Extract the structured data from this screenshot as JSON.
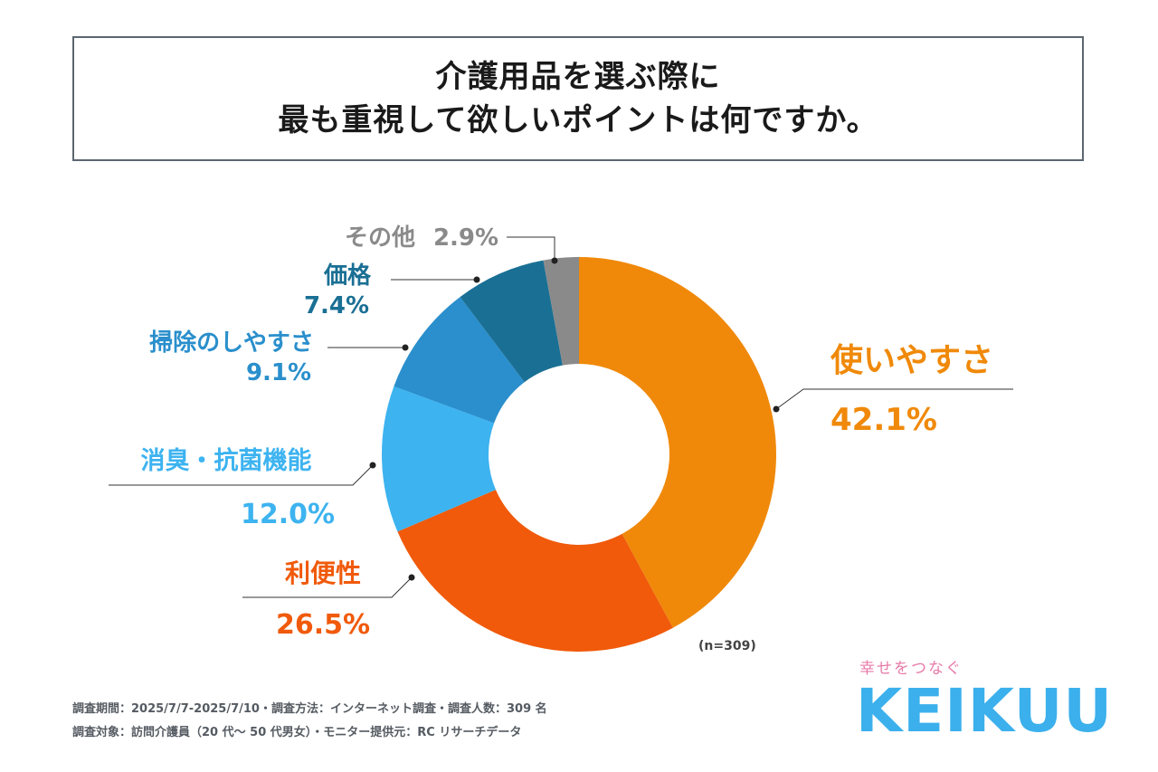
{
  "title": {
    "line1": "介護用品を選ぶ際に",
    "line2": "最も重視して欲しいポイントは何ですか。"
  },
  "chart_data": {
    "type": "pie",
    "style": "donut",
    "sample_size_label": "(n=309)",
    "slices": [
      {
        "label": "使いやすさ",
        "value": 42.1,
        "value_label": "42.1%",
        "color": "#f0890a"
      },
      {
        "label": "利便性",
        "value": 26.5,
        "value_label": "26.5%",
        "color": "#f05a0a"
      },
      {
        "label": "消臭・抗菌機能",
        "value": 12.0,
        "value_label": "12.0%",
        "color": "#3db3f0"
      },
      {
        "label": "掃除のしやすさ",
        "value": 9.1,
        "value_label": "9.1%",
        "color": "#2a8fcc"
      },
      {
        "label": "価格",
        "value": 7.4,
        "value_label": "7.4%",
        "color": "#1a6f94"
      },
      {
        "label": "その他",
        "value": 2.9,
        "value_label": "2.9%",
        "color": "#8a8a8a"
      }
    ]
  },
  "footer": {
    "line1": "調査期間：2025/7/7-2025/7/10・調査方法：インターネット調査・調査人数：309 名",
    "line2": "調査対象：訪問介護員（20 代～ 50 代男女）・モニター提供元：RC リサーチデータ"
  },
  "brand": {
    "tagline": "幸せをつなぐ",
    "logo": "KEIKUU"
  }
}
